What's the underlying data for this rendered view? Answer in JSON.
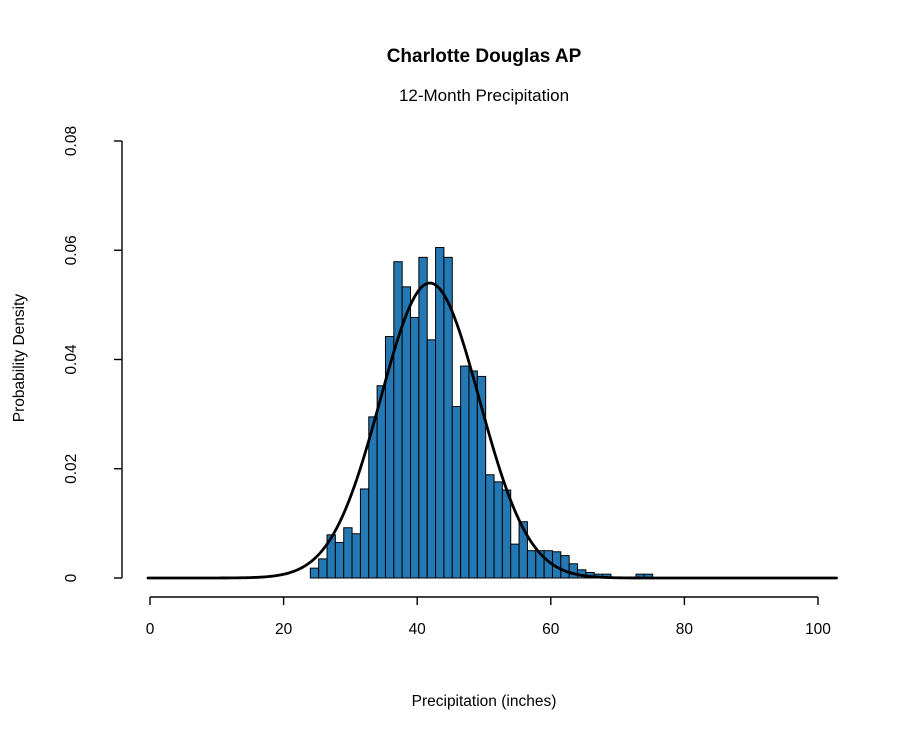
{
  "page": {
    "background": "#ffffff"
  },
  "chart_data": {
    "type": "bar",
    "variant": "histogram",
    "title": "Charlotte Douglas AP",
    "subtitle": "12-Month Precipitation",
    "xlabel": "Precipitation (inches)",
    "ylabel": "Probability Density",
    "x_ticks": [
      0,
      20,
      40,
      60,
      80,
      100
    ],
    "y_ticks": [
      "0",
      "0.02",
      "0.04",
      "0.06",
      "0.08"
    ],
    "y_tick_values": [
      0,
      0.02,
      0.04,
      0.06,
      0.08
    ],
    "xlim": [
      0,
      100
    ],
    "ylim": [
      0,
      0.08
    ],
    "grid": false,
    "legend": null,
    "bin_width": 1.25,
    "bins": [
      {
        "x0": 24.0,
        "x1": 25.25,
        "density": 0.0018
      },
      {
        "x0": 25.25,
        "x1": 26.5,
        "density": 0.0035
      },
      {
        "x0": 26.5,
        "x1": 27.75,
        "density": 0.0079
      },
      {
        "x0": 27.75,
        "x1": 29.0,
        "density": 0.0065
      },
      {
        "x0": 29.0,
        "x1": 30.25,
        "density": 0.0092
      },
      {
        "x0": 30.25,
        "x1": 31.5,
        "density": 0.0081
      },
      {
        "x0": 31.5,
        "x1": 32.75,
        "density": 0.0163
      },
      {
        "x0": 32.75,
        "x1": 34.0,
        "density": 0.0295
      },
      {
        "x0": 34.0,
        "x1": 35.25,
        "density": 0.0352
      },
      {
        "x0": 35.25,
        "x1": 36.5,
        "density": 0.0442
      },
      {
        "x0": 36.5,
        "x1": 37.75,
        "density": 0.0579
      },
      {
        "x0": 37.75,
        "x1": 39.0,
        "density": 0.0533
      },
      {
        "x0": 39.0,
        "x1": 40.25,
        "density": 0.0477
      },
      {
        "x0": 40.25,
        "x1": 41.5,
        "density": 0.0587
      },
      {
        "x0": 41.5,
        "x1": 42.75,
        "density": 0.0436
      },
      {
        "x0": 42.75,
        "x1": 44.0,
        "density": 0.0605
      },
      {
        "x0": 44.0,
        "x1": 45.25,
        "density": 0.0587
      },
      {
        "x0": 45.25,
        "x1": 46.5,
        "density": 0.0314
      },
      {
        "x0": 46.5,
        "x1": 47.75,
        "density": 0.0388
      },
      {
        "x0": 47.75,
        "x1": 49.0,
        "density": 0.0379
      },
      {
        "x0": 49.0,
        "x1": 50.25,
        "density": 0.0369
      },
      {
        "x0": 50.25,
        "x1": 51.5,
        "density": 0.0189
      },
      {
        "x0": 51.5,
        "x1": 52.75,
        "density": 0.0176
      },
      {
        "x0": 52.75,
        "x1": 54.0,
        "density": 0.0161
      },
      {
        "x0": 54.0,
        "x1": 55.25,
        "density": 0.0062
      },
      {
        "x0": 55.25,
        "x1": 56.5,
        "density": 0.0103
      },
      {
        "x0": 56.5,
        "x1": 57.75,
        "density": 0.005
      },
      {
        "x0": 57.75,
        "x1": 59.0,
        "density": 0.005
      },
      {
        "x0": 59.0,
        "x1": 60.25,
        "density": 0.005
      },
      {
        "x0": 60.25,
        "x1": 61.5,
        "density": 0.0048
      },
      {
        "x0": 61.5,
        "x1": 62.75,
        "density": 0.0041
      },
      {
        "x0": 62.75,
        "x1": 64.0,
        "density": 0.0026
      },
      {
        "x0": 64.0,
        "x1": 65.25,
        "density": 0.0015
      },
      {
        "x0": 65.25,
        "x1": 66.5,
        "density": 0.001
      },
      {
        "x0": 66.5,
        "x1": 67.75,
        "density": 0.0007
      },
      {
        "x0": 67.75,
        "x1": 69.0,
        "density": 0.0007
      },
      {
        "x0": 69.0,
        "x1": 70.25,
        "density": 0.0
      },
      {
        "x0": 70.25,
        "x1": 71.5,
        "density": 0.0
      },
      {
        "x0": 71.5,
        "x1": 72.75,
        "density": 0.0
      },
      {
        "x0": 72.75,
        "x1": 74.0,
        "density": 0.0007
      },
      {
        "x0": 74.0,
        "x1": 75.25,
        "density": 0.0007
      }
    ],
    "normal_curve": {
      "mean": 41.9,
      "sd": 7.4,
      "peak_density": 0.054
    },
    "colors": {
      "bar_fill": "#2478B4",
      "bar_stroke": "#000000",
      "curve": "#000000",
      "axis": "#000000",
      "text": "#000000"
    }
  }
}
